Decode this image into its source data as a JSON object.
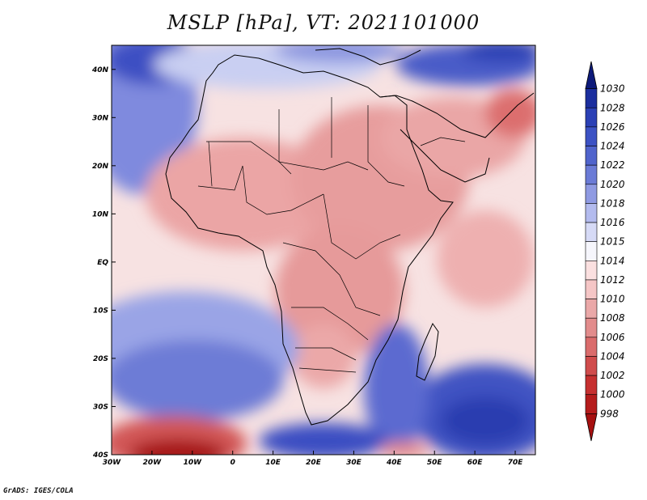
{
  "title": "MSLP [hPa], VT: 2021101000",
  "credit": "GrADS: IGES/COLA",
  "map": {
    "region": "Africa",
    "lon_range": [
      -30,
      75
    ],
    "lat_range": [
      -40,
      45
    ],
    "lat_labels": [
      "40N",
      "30N",
      "20N",
      "10N",
      "EQ",
      "10S",
      "20S",
      "30S",
      "40S"
    ],
    "lon_labels": [
      "30W",
      "20W",
      "10W",
      "0",
      "10E",
      "20E",
      "30E",
      "40E",
      "50E",
      "60E",
      "70E"
    ]
  },
  "colorbar": {
    "levels": [
      "1030",
      "1028",
      "1026",
      "1024",
      "1022",
      "1020",
      "1018",
      "1016",
      "1015",
      "1014",
      "1012",
      "1010",
      "1008",
      "1006",
      "1004",
      "1002",
      "1000",
      "998"
    ],
    "colors": [
      "#0d1a7a",
      "#1b2e9e",
      "#2b40b5",
      "#3c52c4",
      "#5064cc",
      "#6b7bd6",
      "#8f9ae2",
      "#b3bbee",
      "#d6daf6",
      "#f6f6fc",
      "#fbe0e0",
      "#f5c6c6",
      "#eaa8a8",
      "#e28c8c",
      "#da6c6c",
      "#d04c4c",
      "#c63030",
      "#b51c1c",
      "#a61010"
    ]
  }
}
